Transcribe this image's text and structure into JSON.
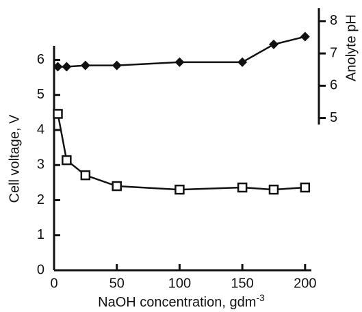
{
  "chart_data": {
    "type": "line",
    "xlabel": "NaOH concentration, gdm",
    "xlabel_superscript": "-3",
    "ylabel": "Cell voltage, V",
    "y2label": "Anolyte pH",
    "xlim": [
      0,
      205
    ],
    "xticks": [
      0,
      50,
      100,
      150,
      200
    ],
    "ylim": [
      0,
      6.4
    ],
    "yticks": [
      0,
      1,
      2,
      3,
      4,
      5,
      6
    ],
    "y2lim": [
      4.8,
      8.4
    ],
    "y2ticks": [
      5,
      6,
      7,
      8
    ],
    "series": [
      {
        "marker": "diamond",
        "axis": "y2",
        "color": "#111111",
        "x": [
          3,
          10,
          25,
          50,
          100,
          150,
          175,
          200
        ],
        "values": [
          6.59,
          6.59,
          6.63,
          6.63,
          6.73,
          6.73,
          7.28,
          7.52
        ]
      },
      {
        "marker": "square",
        "axis": "y",
        "color": "#111111",
        "x": [
          3,
          10,
          25,
          50,
          100,
          150,
          175,
          200
        ],
        "values": [
          4.46,
          3.14,
          2.71,
          2.4,
          2.3,
          2.36,
          2.3,
          2.36
        ]
      }
    ]
  }
}
